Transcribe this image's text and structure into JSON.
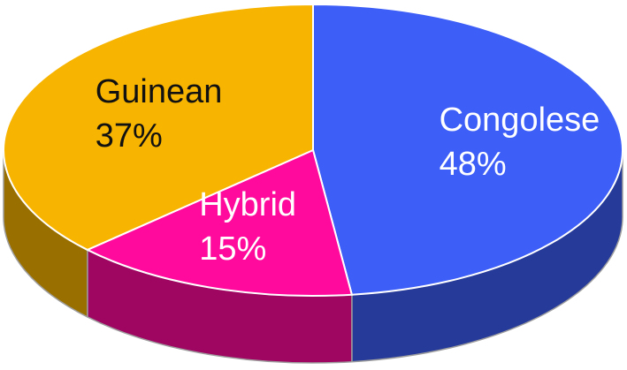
{
  "chart_data": {
    "type": "pie",
    "categories": [
      "Congolese",
      "Hybrid",
      "Guinean"
    ],
    "values": [
      48,
      15,
      37
    ],
    "value_labels": [
      "48%",
      "15%",
      "37%"
    ],
    "colors": [
      "#3d5ef7",
      "#ff0a9c",
      "#f7b400"
    ],
    "label_colors": [
      "#ffffff",
      "#ffffff",
      "#111111"
    ]
  }
}
